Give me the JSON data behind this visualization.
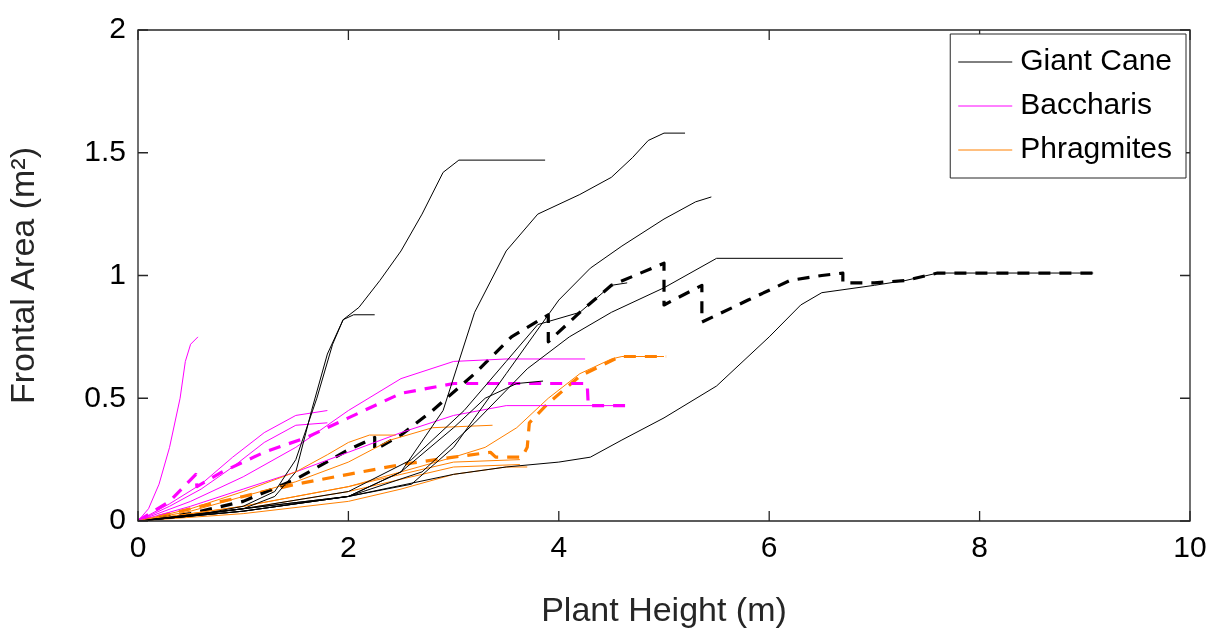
{
  "chart_data": {
    "type": "line",
    "xlabel": "Plant Height (m)",
    "ylabel": "Frontal Area (m²)",
    "xlim": [
      0,
      10
    ],
    "xticks": [
      0,
      2,
      4,
      6,
      8,
      10
    ],
    "ylim": [
      0,
      2
    ],
    "yticks": [
      0,
      0.5,
      1,
      1.5,
      2
    ],
    "grid": false,
    "legend": "top right",
    "marker": "none",
    "line_style": "solid",
    "series": [
      {
        "name": "Giant Cane",
        "color": "#000000",
        "x": [
          0,
          0.5,
          1,
          1.3,
          1.5,
          1.7,
          1.85,
          1.95,
          2.05,
          2.25
        ],
        "values": [
          0,
          0.02,
          0.06,
          0.12,
          0.25,
          0.5,
          0.72,
          0.82,
          0.84,
          0.84
        ]
      },
      {
        "name": "Baccharis",
        "color": "#ff00ff",
        "x": [
          0,
          0.1,
          0.2,
          0.3,
          0.4,
          0.45,
          0.5,
          0.57
        ],
        "values": [
          0,
          0.05,
          0.15,
          0.3,
          0.5,
          0.65,
          0.72,
          0.75
        ]
      },
      {
        "name": "Phragmites",
        "color": "#ff8000",
        "x": [
          0,
          0.5,
          1,
          1.5,
          1.8,
          2,
          2.2,
          2.45
        ],
        "values": [
          0,
          0.05,
          0.12,
          0.2,
          0.27,
          0.32,
          0.35,
          0.35
        ]
      },
      {
        "color": "#000000",
        "x": [
          0,
          0.5,
          1,
          1.3,
          1.5,
          1.65,
          1.8,
          1.95,
          2.1,
          2.3,
          2.5,
          2.7,
          2.9,
          3.05,
          3.87
        ],
        "values": [
          0,
          0.02,
          0.05,
          0.1,
          0.2,
          0.45,
          0.68,
          0.82,
          0.87,
          0.98,
          1.1,
          1.25,
          1.42,
          1.47,
          1.47
        ]
      },
      {
        "color": "#000000",
        "x": [
          0,
          1,
          2,
          2.5,
          2.9,
          3.2,
          3.5,
          3.8,
          4.2,
          4.5,
          4.7,
          4.85,
          5,
          5.2
        ],
        "values": [
          0,
          0.05,
          0.1,
          0.2,
          0.45,
          0.85,
          1.1,
          1.25,
          1.33,
          1.4,
          1.48,
          1.55,
          1.58,
          1.58
        ]
      },
      {
        "color": "#000000",
        "x": [
          0,
          1,
          2,
          2.6,
          3,
          3.5,
          4,
          4.3,
          4.6,
          5,
          5.3,
          5.45
        ],
        "values": [
          0,
          0.05,
          0.1,
          0.15,
          0.3,
          0.6,
          0.9,
          1.03,
          1.12,
          1.23,
          1.3,
          1.32
        ]
      },
      {
        "color": "#000000",
        "x": [
          0,
          1,
          2,
          2.7,
          3.2,
          3.7,
          4.1,
          4.5,
          5,
          5.5,
          6.7
        ],
        "values": [
          0,
          0.04,
          0.1,
          0.2,
          0.4,
          0.62,
          0.75,
          0.85,
          0.95,
          1.07,
          1.07
        ]
      },
      {
        "color": "#000000",
        "x": [
          0,
          1,
          2,
          2.5,
          3,
          3.3,
          3.6,
          3.85
        ],
        "values": [
          0,
          0.04,
          0.1,
          0.2,
          0.38,
          0.5,
          0.56,
          0.57
        ]
      },
      {
        "color": "#000000",
        "x": [
          0,
          1,
          2,
          2.6,
          3.1,
          3.5,
          3.8,
          4.2,
          4.5,
          4.65
        ],
        "values": [
          0,
          0.05,
          0.12,
          0.25,
          0.45,
          0.65,
          0.8,
          0.85,
          0.96,
          0.97
        ]
      },
      {
        "color": "#000000",
        "x": [
          0,
          1,
          2,
          3,
          3.5,
          4,
          4.3,
          4.6,
          5,
          5.5,
          6,
          6.3,
          6.5,
          7,
          7.3,
          7.6,
          9.08
        ],
        "values": [
          0,
          0.04,
          0.1,
          0.19,
          0.22,
          0.24,
          0.26,
          0.33,
          0.42,
          0.55,
          0.75,
          0.88,
          0.93,
          0.96,
          0.98,
          1.01,
          1.01
        ]
      },
      {
        "color": "#ff00ff",
        "x": [
          0,
          0.3,
          0.6,
          0.9,
          1.2,
          1.5,
          1.8
        ],
        "values": [
          0,
          0.07,
          0.15,
          0.26,
          0.36,
          0.43,
          0.45
        ]
      },
      {
        "color": "#ff00ff",
        "x": [
          0,
          0.3,
          0.6,
          0.9,
          1.2,
          1.5,
          1.8
        ],
        "values": [
          0,
          0.06,
          0.13,
          0.22,
          0.32,
          0.39,
          0.4
        ]
      },
      {
        "color": "#ff00ff",
        "x": [
          0,
          0.5,
          1,
          1.5,
          2,
          2.5,
          3,
          3.5,
          4.25
        ],
        "values": [
          0,
          0.08,
          0.18,
          0.3,
          0.45,
          0.58,
          0.65,
          0.66,
          0.66
        ]
      },
      {
        "color": "#ff00ff",
        "x": [
          0,
          0.5,
          1,
          1.5,
          2,
          2.5,
          3,
          3.5,
          4.6
        ],
        "values": [
          0,
          0.06,
          0.13,
          0.2,
          0.28,
          0.36,
          0.43,
          0.47,
          0.47
        ]
      },
      {
        "color": "#ff8000",
        "x": [
          0,
          0.5,
          1,
          1.5,
          2,
          2.4,
          2.8,
          3.37
        ],
        "values": [
          0,
          0.04,
          0.1,
          0.16,
          0.24,
          0.33,
          0.38,
          0.39
        ]
      },
      {
        "color": "#ff8000",
        "x": [
          0,
          1,
          2,
          2.5,
          3,
          3.63
        ],
        "values": [
          0,
          0.06,
          0.14,
          0.19,
          0.24,
          0.25
        ]
      },
      {
        "color": "#ff8000",
        "x": [
          0,
          1,
          2,
          2.5,
          3,
          3.63
        ],
        "values": [
          0,
          0.05,
          0.12,
          0.17,
          0.22,
          0.23
        ]
      },
      {
        "color": "#ff8000",
        "x": [
          0,
          1,
          2,
          2.5,
          3,
          3.5,
          3.7
        ],
        "values": [
          0,
          0.03,
          0.08,
          0.13,
          0.19,
          0.22,
          0.22
        ]
      },
      {
        "color": "#ff8000",
        "x": [
          0,
          1,
          2,
          2.5,
          3,
          3.3,
          3.6,
          3.9,
          4.2,
          4.5,
          4.6,
          5
        ],
        "values": [
          0,
          0.06,
          0.14,
          0.2,
          0.26,
          0.3,
          0.38,
          0.5,
          0.6,
          0.66,
          0.67,
          0.67
        ]
      },
      {
        "color": "#000000",
        "line_style": "dashed",
        "x": [
          0,
          0.5,
          1,
          1.5,
          2,
          2.25,
          2.25,
          2.5,
          2.8,
          3.2,
          3.55,
          3.9,
          3.9,
          4.2,
          4.5,
          5,
          5,
          5.36,
          5.36,
          5.8,
          6.2,
          6.5,
          6.7,
          6.7,
          7,
          7.3,
          7.6,
          9.08
        ],
        "values": [
          0,
          0.03,
          0.08,
          0.17,
          0.29,
          0.34,
          0.29,
          0.35,
          0.45,
          0.6,
          0.75,
          0.84,
          0.73,
          0.85,
          0.96,
          1.05,
          0.88,
          0.96,
          0.81,
          0.9,
          0.98,
          1,
          1.01,
          0.97,
          0.97,
          0.98,
          1.01,
          1.01
        ]
      },
      {
        "color": "#ff00ff",
        "line_style": "dashed",
        "x": [
          0,
          0.3,
          0.55,
          0.56,
          0.8,
          1.2,
          1.6,
          2,
          2.5,
          3,
          3.5,
          4.27,
          4.28,
          4.63
        ],
        "values": [
          0,
          0.08,
          0.19,
          0.14,
          0.2,
          0.28,
          0.34,
          0.42,
          0.52,
          0.56,
          0.56,
          0.56,
          0.47,
          0.47
        ]
      },
      {
        "color": "#ff8000",
        "line_style": "dashed",
        "x": [
          0,
          0.5,
          1,
          1.5,
          2,
          2.5,
          3,
          3.35,
          3.4,
          3.65,
          3.7,
          3.72,
          3.9,
          4.2,
          4.58,
          5.02
        ],
        "values": [
          0,
          0.05,
          0.1,
          0.15,
          0.19,
          0.23,
          0.26,
          0.28,
          0.26,
          0.26,
          0.3,
          0.4,
          0.48,
          0.59,
          0.67,
          0.67
        ]
      }
    ]
  }
}
